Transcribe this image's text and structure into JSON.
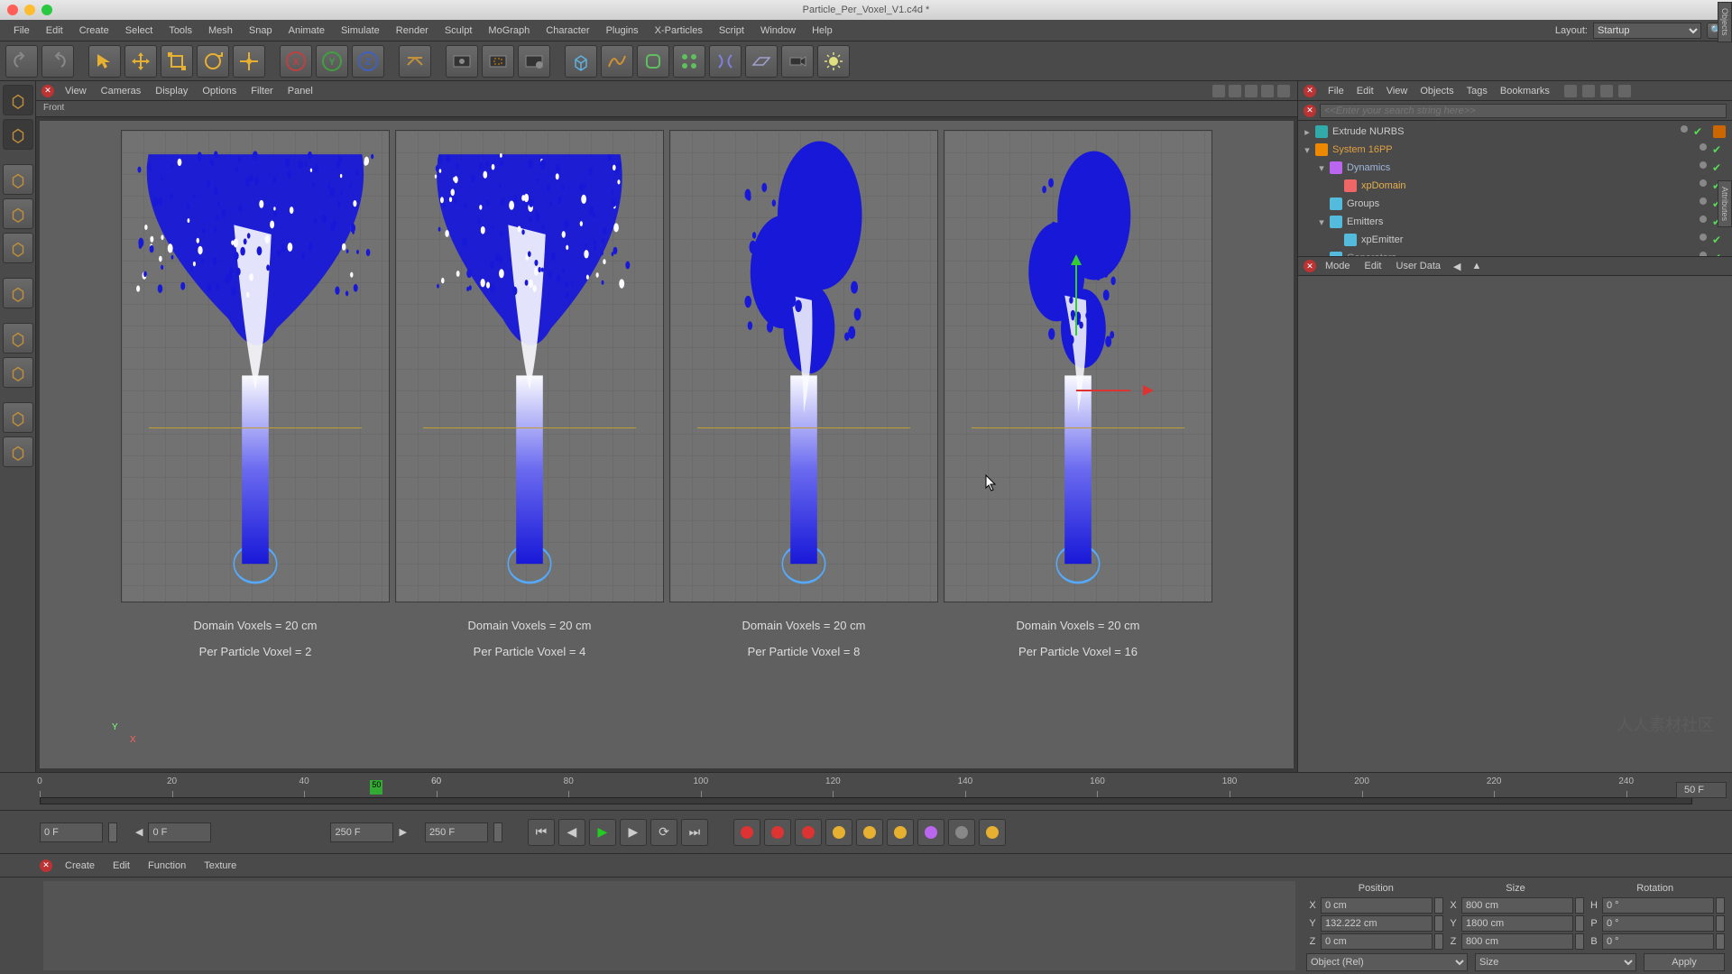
{
  "window": {
    "title": "Particle_Per_Voxel_V1.c4d *"
  },
  "menubar": {
    "items": [
      "File",
      "Edit",
      "Create",
      "Select",
      "Tools",
      "Mesh",
      "Snap",
      "Animate",
      "Simulate",
      "Render",
      "Sculpt",
      "MoGraph",
      "Character",
      "Plugins",
      "X-Particles",
      "Script",
      "Window",
      "Help"
    ],
    "layout_label": "Layout:",
    "layout_value": "Startup"
  },
  "traffic_colors": [
    "#ff5f57",
    "#febc2e",
    "#28c840"
  ],
  "viewport": {
    "menu": [
      "View",
      "Cameras",
      "Display",
      "Options",
      "Filter",
      "Panel"
    ],
    "label": "Front",
    "axis_y": "Y",
    "axis_x": "X",
    "panels": [
      {
        "caption1": "Domain Voxels = 20 cm",
        "caption2": "Per Particle Voxel = 2",
        "spread": 1.0,
        "detail": 0.9
      },
      {
        "caption1": "Domain Voxels = 20 cm",
        "caption2": "Per Particle Voxel = 4",
        "spread": 0.85,
        "detail": 1.0
      },
      {
        "caption1": "Domain Voxels = 20 cm",
        "caption2": "Per Particle Voxel = 8",
        "spread": 0.7,
        "detail": 1.2
      },
      {
        "caption1": "Domain Voxels = 20 cm",
        "caption2": "Per Particle Voxel = 16",
        "spread": 0.55,
        "detail": 1.4
      }
    ],
    "colors": {
      "dark": "#1818d8",
      "mid": "#6a6af0",
      "light": "#fafaff"
    }
  },
  "objects": {
    "menu": [
      "File",
      "Edit",
      "View",
      "Objects",
      "Tags",
      "Bookmarks"
    ],
    "search_placeholder": "<<Enter your search string here>>",
    "tree": [
      {
        "indent": 0,
        "exp": "▸",
        "name": "Extrude NURBS",
        "color": "#3aa",
        "nmcolor": "#ccc",
        "tag": "#c60"
      },
      {
        "indent": 0,
        "exp": "▾",
        "name": "System 16PP",
        "color": "#e80",
        "nmcolor": "#e0a040",
        "tag": ""
      },
      {
        "indent": 1,
        "exp": "▾",
        "name": "Dynamics",
        "color": "#b6e",
        "nmcolor": "#9fb7d9",
        "tag": ""
      },
      {
        "indent": 2,
        "exp": "",
        "name": "xpDomain",
        "color": "#e66",
        "nmcolor": "#e6b050",
        "tag": ""
      },
      {
        "indent": 1,
        "exp": "",
        "name": "Groups",
        "color": "#5bd",
        "nmcolor": "#ccc",
        "tag": ""
      },
      {
        "indent": 1,
        "exp": "▾",
        "name": "Emitters",
        "color": "#5bd",
        "nmcolor": "#ccc",
        "tag": ""
      },
      {
        "indent": 2,
        "exp": "",
        "name": "xpEmitter",
        "color": "#5bd",
        "nmcolor": "#ccc",
        "tag": ""
      },
      {
        "indent": 1,
        "exp": "",
        "name": "Generators",
        "color": "#5bd",
        "nmcolor": "#9a9a9a",
        "tag": ""
      }
    ]
  },
  "attrs": {
    "menu": [
      "Mode",
      "Edit",
      "User Data"
    ]
  },
  "timeline": {
    "ticks": [
      0,
      20,
      40,
      60,
      80,
      100,
      120,
      140,
      160,
      180,
      200,
      220,
      240
    ],
    "marker_at": 50,
    "marker_label": "50",
    "extra_tick": 60,
    "frame_field": "50 F",
    "start": "0 F",
    "scrub_start": "0 F",
    "scrub_end": "250 F",
    "end": "250 F"
  },
  "bottom_menu": [
    "Create",
    "Edit",
    "Function",
    "Texture"
  ],
  "coords": {
    "headers": [
      "Position",
      "Size",
      "Rotation"
    ],
    "rows": [
      {
        "a": "X",
        "av": "0 cm",
        "b": "X",
        "bv": "800 cm",
        "c": "H",
        "cv": "0 °"
      },
      {
        "a": "Y",
        "av": "132.222 cm",
        "b": "Y",
        "bv": "1800 cm",
        "c": "P",
        "cv": "0 °"
      },
      {
        "a": "Z",
        "av": "0 cm",
        "b": "Z",
        "bv": "800 cm",
        "c": "B",
        "cv": "0 °"
      }
    ],
    "sel1": "Object (Rel)",
    "sel2": "Size",
    "apply": "Apply"
  },
  "toolbar_icons": [
    {
      "n": "undo",
      "c": "#888"
    },
    {
      "n": "redo",
      "c": "#888"
    },
    {
      "n": "sep"
    },
    {
      "n": "live-select",
      "c": "#e8b030"
    },
    {
      "n": "move",
      "c": "#e8b030"
    },
    {
      "n": "scale",
      "c": "#e8b030"
    },
    {
      "n": "rotate",
      "c": "#e8b030"
    },
    {
      "n": "lasso",
      "c": "#e8b030"
    },
    {
      "n": "sep"
    },
    {
      "n": "x-axis",
      "c": "#c04040"
    },
    {
      "n": "y-axis",
      "c": "#40a040"
    },
    {
      "n": "z-axis",
      "c": "#4060c0"
    },
    {
      "n": "sep"
    },
    {
      "n": "coord",
      "c": "#c0903a"
    },
    {
      "n": "sep"
    },
    {
      "n": "render",
      "c": "#555"
    },
    {
      "n": "render-region",
      "c": "#555"
    },
    {
      "n": "render-settings",
      "c": "#555"
    },
    {
      "n": "sep"
    },
    {
      "n": "cube",
      "c": "#60b0e0"
    },
    {
      "n": "spline",
      "c": "#d09030"
    },
    {
      "n": "nurbs",
      "c": "#60c060"
    },
    {
      "n": "array",
      "c": "#60c060"
    },
    {
      "n": "deformer",
      "c": "#8080e0"
    },
    {
      "n": "floor",
      "c": "#a0a0d0"
    },
    {
      "n": "camera",
      "c": "#555"
    },
    {
      "n": "light",
      "c": "#e0e080"
    }
  ],
  "leftbar_icons": [
    {
      "n": "model",
      "dark": true
    },
    {
      "n": "texture",
      "dark": true
    },
    {
      "n": "sep"
    },
    {
      "n": "points"
    },
    {
      "n": "edges"
    },
    {
      "n": "polys"
    },
    {
      "n": "sep"
    },
    {
      "n": "axis"
    },
    {
      "n": "sep"
    },
    {
      "n": "snap"
    },
    {
      "n": "workplane"
    },
    {
      "n": "sep"
    },
    {
      "n": "soft"
    },
    {
      "n": "locked"
    }
  ],
  "playback_icons": [
    "goto-start",
    "prev-key",
    "play",
    "next-key",
    "loop",
    "goto-end"
  ],
  "rec_icons": [
    "record",
    "autokey",
    "key-sel",
    "pos-key",
    "scale-key",
    "rot-key",
    "param-key",
    "anim-layer",
    "timeline-btn"
  ],
  "watermark": "人人素材社区"
}
